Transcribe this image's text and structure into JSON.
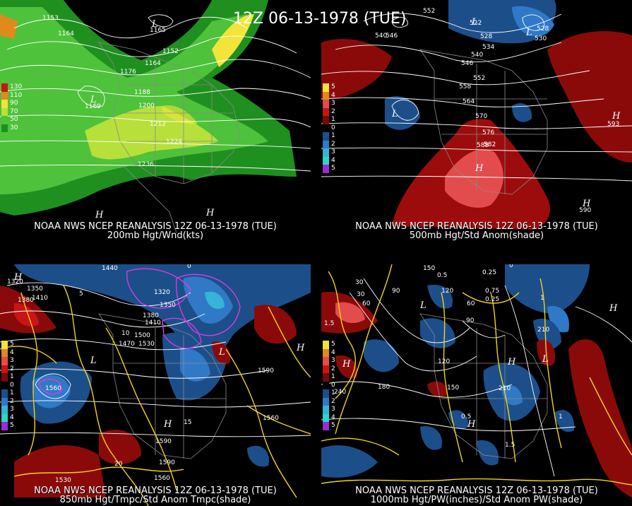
{
  "title_banner": "12Z 06-13-1978 (TUE)",
  "panels": [
    {
      "id": "p200",
      "caption_line1": "NOAA NWS NCEP REANALYSIS 12Z 06-13-1978 (TUE)",
      "caption_line2": "200mb Hgt/Wnd(kts)",
      "legend": [
        {
          "label": "130",
          "color": "#c81414"
        },
        {
          "label": "110",
          "color": "#e08a1c"
        },
        {
          "label": "90",
          "color": "#f2e43a"
        },
        {
          "label": "70",
          "color": "#b7e03a"
        },
        {
          "label": "50",
          "color": "#4ec23a"
        },
        {
          "label": "30",
          "color": "#1f8f1f"
        }
      ],
      "contour_labels": [
        "1164",
        "1152",
        "1164",
        "1176",
        "1188",
        "1200",
        "1212",
        "1224",
        "1236",
        "1153",
        "1165",
        "1169"
      ],
      "symbols": [
        "L",
        "L",
        "H",
        "H"
      ]
    },
    {
      "id": "p500",
      "caption_line1": "NOAA NWS NCEP REANALYSIS 12Z 06-13-1978 (TUE)",
      "caption_line2": "500mb Hgt/Std Anom(shade)",
      "legend": [
        {
          "label": "5",
          "color": "#f2e43a"
        },
        {
          "label": "4",
          "color": "#e08a1c"
        },
        {
          "label": "3",
          "color": "#e34c4c"
        },
        {
          "label": "2",
          "color": "#c81414"
        },
        {
          "label": "1",
          "color": "#7a0a0a"
        },
        {
          "label": "0",
          "color": "#000000"
        },
        {
          "label": "1",
          "color": "#1c4f8a"
        },
        {
          "label": "2",
          "color": "#2f79c6"
        },
        {
          "label": "3",
          "color": "#36b3d9"
        },
        {
          "label": "4",
          "color": "#2bd6c8"
        },
        {
          "label": "5",
          "color": "#9a2bd6"
        }
      ],
      "contour_labels": [
        "552",
        "522",
        "528",
        "534",
        "540",
        "546",
        "552",
        "558",
        "564",
        "570",
        "576",
        "582",
        "588",
        "540",
        "546",
        "528",
        "593",
        "590",
        "530"
      ],
      "symbols": [
        "L",
        "L",
        "L",
        "H",
        "H",
        "H"
      ]
    },
    {
      "id": "p850",
      "caption_line1": "NOAA NWS NCEP REANALYSIS 12Z 06-13-1978 (TUE)",
      "caption_line2": "850mb Hgt/Tmpc/Std Anom Tmpc(shade)",
      "legend": [
        {
          "label": "5",
          "color": "#f2e43a"
        },
        {
          "label": "4",
          "color": "#e08a1c"
        },
        {
          "label": "3",
          "color": "#e34c4c"
        },
        {
          "label": "2",
          "color": "#c81414"
        },
        {
          "label": "1",
          "color": "#7a0a0a"
        },
        {
          "label": "0",
          "color": "#000000"
        },
        {
          "label": "1",
          "color": "#1c4f8a"
        },
        {
          "label": "2",
          "color": "#2f79c6"
        },
        {
          "label": "3",
          "color": "#36b3d9"
        },
        {
          "label": "4",
          "color": "#2bd6c8"
        },
        {
          "label": "5",
          "color": "#9a2bd6"
        }
      ],
      "contour_labels": [
        "1440",
        "1320",
        "1350",
        "1380",
        "1410",
        "1320",
        "1350",
        "1380",
        "1410",
        "1470",
        "1500",
        "1530",
        "1560",
        "1590",
        "1560",
        "1590",
        "1590",
        "1560",
        "1530",
        "10",
        "15",
        "20",
        "5",
        "0"
      ],
      "symbols": [
        "L",
        "L",
        "H",
        "H",
        "H"
      ]
    },
    {
      "id": "p1000",
      "caption_line1": "NOAA NWS NCEP REANALYSIS 12Z 06-13-1978 (TUE)",
      "caption_line2": "1000mb Hgt/PW(inches)/Std Anom PW(shade)",
      "legend": [
        {
          "label": "5",
          "color": "#f2e43a"
        },
        {
          "label": "4",
          "color": "#e08a1c"
        },
        {
          "label": "3",
          "color": "#e34c4c"
        },
        {
          "label": "2",
          "color": "#c81414"
        },
        {
          "label": "1",
          "color": "#7a0a0a"
        },
        {
          "label": "0",
          "color": "#000000"
        },
        {
          "label": "1",
          "color": "#1c4f8a"
        },
        {
          "label": "2",
          "color": "#2f79c6"
        },
        {
          "label": "3",
          "color": "#36b3d9"
        },
        {
          "label": "4",
          "color": "#2bd6c8"
        },
        {
          "label": "5",
          "color": "#9a2bd6"
        }
      ],
      "contour_labels": [
        "150",
        "0.5",
        "0.25",
        "0",
        "30",
        "60",
        "90",
        "120",
        "0.75",
        "1",
        "1.5",
        "210",
        "240",
        "180",
        "150",
        "120",
        "90",
        "60",
        "30",
        "0.25",
        "0.5",
        "1",
        "1.5",
        "210"
      ],
      "symbols": [
        "L",
        "L",
        "H",
        "H",
        "H",
        "H"
      ]
    }
  ]
}
